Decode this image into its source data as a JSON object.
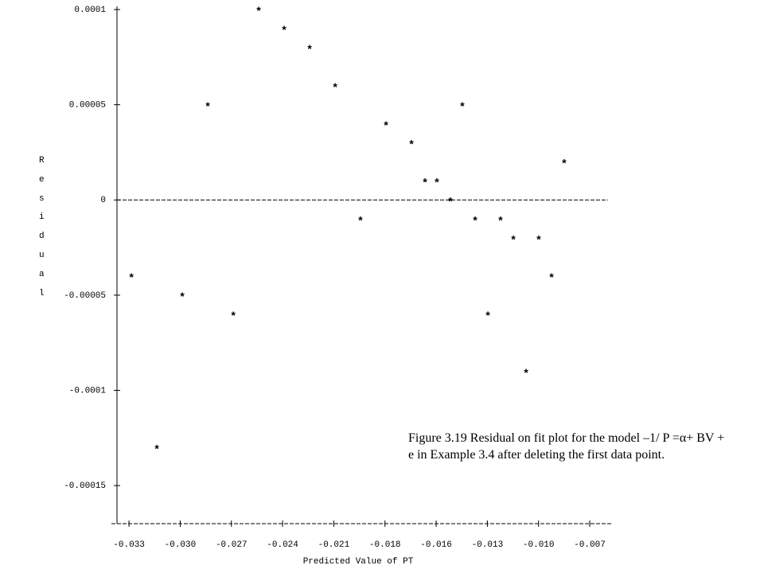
{
  "chart_data": {
    "type": "scatter",
    "x_label": "Predicted Value of PT",
    "y_label": "Residual",
    "annotation": "Figure 3.19  Residual on fit plot for the model –1/ P =α+ BV + e in Example 3.4 after deleting the first data point.",
    "marker": "*",
    "color": "#000000",
    "zero_line": true,
    "xlim": [
      -0.034,
      -0.0055
    ],
    "ylim": [
      -0.00017,
      0.0001
    ],
    "xticks": [
      {
        "value": -0.033,
        "label": "-0.033"
      },
      {
        "value": -0.03009,
        "label": "-0.030"
      },
      {
        "value": -0.02718,
        "label": "-0.027"
      },
      {
        "value": -0.02427,
        "label": "-0.024"
      },
      {
        "value": -0.02136,
        "label": "-0.021"
      },
      {
        "value": -0.01845,
        "label": "-0.018"
      },
      {
        "value": -0.01554,
        "label": "-0.016"
      },
      {
        "value": -0.01263,
        "label": "-0.013"
      },
      {
        "value": -0.00972,
        "label": "-0.010"
      },
      {
        "value": -0.00681,
        "label": "-0.007"
      }
    ],
    "yticks": [
      0.0001,
      5e-05,
      0,
      -5e-05,
      -0.0001,
      -0.00015
    ],
    "x": [
      -0.02563,
      -0.02418,
      -0.02273,
      -0.02128,
      -0.02852,
      -0.01405,
      -0.01839,
      -0.01694,
      -0.00826,
      -0.01617,
      -0.0155,
      -0.01473,
      -0.01984,
      -0.01332,
      -0.01188,
      -0.01115,
      -0.00971,
      -0.03286,
      -0.00898,
      -0.02997,
      -0.02707,
      -0.0126,
      -0.01043,
      -0.03142
    ],
    "values": [
      0.0001,
      9e-05,
      8e-05,
      6e-05,
      5e-05,
      5e-05,
      4e-05,
      3e-05,
      2e-05,
      1e-05,
      1e-05,
      0,
      -1e-05,
      -1e-05,
      -1e-05,
      -2e-05,
      -2e-05,
      -4e-05,
      -4e-05,
      -5e-05,
      -6e-05,
      -6e-05,
      -9e-05,
      -0.00013
    ]
  }
}
